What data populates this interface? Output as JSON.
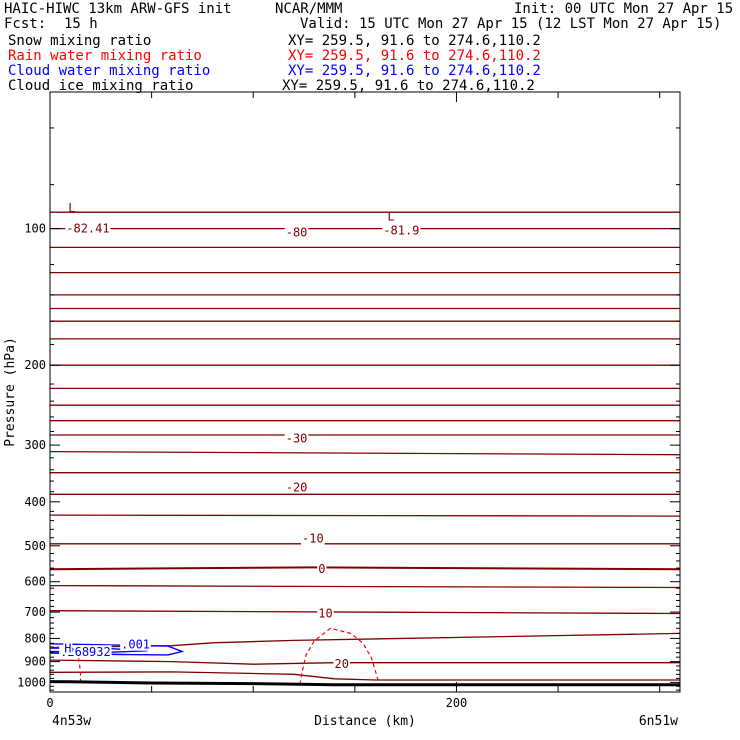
{
  "header": {
    "model": "HAIC-HIWC 13km ARW-GFS init",
    "org": "NCAR/MMM",
    "init": "Init: 00 UTC Mon 27 Apr 15",
    "fcst_label": "Fcst:",
    "fcst_value": "15 h",
    "valid": "Valid: 15 UTC Mon 27 Apr 15 (12 LST Mon 27 Apr 15)",
    "fields": [
      {
        "name": "Snow mixing ratio",
        "xy": "XY= 259.5, 91.6 to 274.6,110.2",
        "color": "#000000"
      },
      {
        "name": "Rain water mixing ratio",
        "xy": "XY= 259.5, 91.6 to 274.6,110.2",
        "color": "#ff0000"
      },
      {
        "name": "Cloud water mixing ratio",
        "xy": "XY= 259.5, 91.6 to 274.6,110.2",
        "color": "#0000ff"
      },
      {
        "name": "Cloud ice mixing ratio",
        "xy": "XY= 259.5, 91.6 to 274.6,110.2",
        "color": "#000000"
      }
    ]
  },
  "chart_data": {
    "type": "line",
    "xlabel": "Distance (km)",
    "ylabel": "Pressure (hPa)",
    "xlim": [
      0,
      310
    ],
    "ylim": [
      1050,
      50
    ],
    "y_scale": "log",
    "x_ticks": [
      0,
      200
    ],
    "y_ticks": [
      100,
      200,
      300,
      400,
      500,
      600,
      700,
      800,
      900,
      1000
    ],
    "x_endpoints": {
      "left": "4n53w",
      "right": "6n51w"
    },
    "colors": {
      "temperature": "#800000",
      "rain": "#ff0000",
      "cloud_water": "#0000ff",
      "terrain": "#000000"
    },
    "temperature_isotherms": [
      {
        "x": [
          0,
          310
        ],
        "p": [
          92,
          92
        ]
      },
      {
        "x": [
          0,
          310
        ],
        "p": [
          100,
          100
        ]
      },
      {
        "x": [
          0,
          310
        ],
        "p": [
          110,
          110
        ]
      },
      {
        "x": [
          0,
          310
        ],
        "p": [
          125,
          125
        ]
      },
      {
        "x": [
          0,
          310
        ],
        "p": [
          140,
          140
        ]
      },
      {
        "x": [
          0,
          310
        ],
        "p": [
          150,
          150
        ]
      },
      {
        "x": [
          0,
          310
        ],
        "p": [
          160,
          160
        ]
      },
      {
        "x": [
          0,
          310
        ],
        "p": [
          175,
          175
        ]
      },
      {
        "x": [
          0,
          310
        ],
        "p": [
          200,
          200
        ]
      },
      {
        "x": [
          0,
          310
        ],
        "p": [
          225,
          225
        ]
      },
      {
        "x": [
          0,
          310
        ],
        "p": [
          245,
          245
        ]
      },
      {
        "x": [
          0,
          310
        ],
        "p": [
          265,
          265
        ]
      },
      {
        "x": [
          0,
          310
        ],
        "p": [
          285,
          285
        ]
      },
      {
        "x": [
          0,
          310
        ],
        "p": [
          310,
          315
        ]
      },
      {
        "x": [
          0,
          310
        ],
        "p": [
          345,
          345
        ]
      },
      {
        "x": [
          0,
          310
        ],
        "p": [
          385,
          385
        ]
      },
      {
        "x": [
          0,
          310
        ],
        "p": [
          428,
          430
        ]
      },
      {
        "x": [
          0,
          310
        ],
        "p": [
          495,
          495
        ]
      },
      {
        "x": [
          0,
          130,
          310
        ],
        "p": [
          563,
          558,
          563
        ]
      },
      {
        "x": [
          0,
          310
        ],
        "p": [
          612,
          618
        ]
      },
      {
        "x": [
          0,
          310
        ],
        "p": [
          695,
          705
        ]
      },
      {
        "x": [
          0,
          60,
          80,
          120,
          310
        ],
        "p": [
          838,
          830,
          818,
          808,
          780
        ]
      },
      {
        "x": [
          0,
          60,
          100,
          140,
          310
        ],
        "p": [
          893,
          900,
          912,
          905,
          905
        ]
      },
      {
        "x": [
          0,
          60,
          120,
          140,
          160,
          310
        ],
        "p": [
          950,
          948,
          960,
          982,
          988,
          988
        ]
      }
    ],
    "contour_labels": [
      {
        "text": "-80",
        "x": 116,
        "p": 102
      },
      {
        "text": "-30",
        "x": 116,
        "p": 290
      },
      {
        "text": "-20",
        "x": 116,
        "p": 372
      },
      {
        "text": "-10",
        "x": 124,
        "p": 482
      },
      {
        "text": "0",
        "x": 132,
        "p": 563
      },
      {
        "text": "10",
        "x": 132,
        "p": 705
      },
      {
        "text": "20",
        "x": 140,
        "p": 910
      },
      {
        "text": "-82.41",
        "x": 8,
        "p": 100
      },
      {
        "text": "-81.9",
        "x": 164,
        "p": 101
      }
    ],
    "low_markers": [
      {
        "text": "L",
        "x": 9,
        "p": 90
      },
      {
        "text": "L",
        "x": 166,
        "p": 94
      }
    ],
    "rain_contours": [
      {
        "x": [
          0,
          12,
          14,
          15,
          15
        ],
        "p": [
          835,
          840,
          880,
          950,
          1000
        ]
      },
      {
        "x": [
          123,
          124,
          126,
          130,
          138,
          148,
          154,
          158,
          160,
          162
        ],
        "p": [
          1010,
          950,
          870,
          810,
          760,
          780,
          820,
          880,
          940,
          1010
        ]
      }
    ],
    "cloud_water_contours": [
      {
        "x": [
          0,
          35,
          58,
          65,
          58,
          35,
          0
        ],
        "p": [
          822,
          828,
          832,
          855,
          870,
          868,
          862
        ]
      },
      {
        "x": [
          0,
          30,
          48,
          30,
          0
        ],
        "p": [
          840,
          843,
          852,
          858,
          855
        ]
      }
    ],
    "cloud_water_labels": [
      {
        "text": ".001",
        "x": 35,
        "p": 826
      },
      {
        "text": ".268932",
        "x": 5,
        "p": 858
      },
      {
        "text": "H",
        "x": 7,
        "p": 843
      }
    ],
    "terrain": {
      "x": [
        0,
        10,
        50,
        100,
        140,
        200,
        250,
        310
      ],
      "p": [
        996,
        997,
        1003,
        1006,
        1012,
        1012,
        1012,
        1012
      ]
    }
  }
}
